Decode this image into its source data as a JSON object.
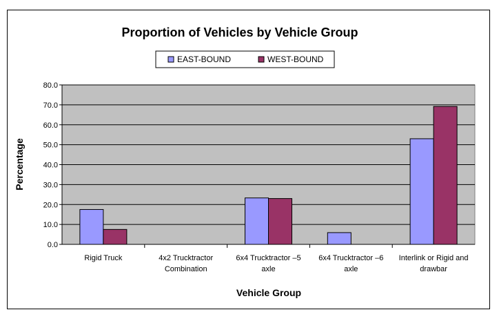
{
  "chart_data": {
    "type": "bar",
    "title": "Proportion of Vehicles by Vehicle Group",
    "xlabel": "Vehicle Group",
    "ylabel": "Percentage",
    "ylim": [
      0,
      80
    ],
    "yticks": [
      "0.0",
      "10.0",
      "20.0",
      "30.0",
      "40.0",
      "50.0",
      "60.0",
      "70.0",
      "80.0"
    ],
    "categories": [
      [
        "Rigid Truck"
      ],
      [
        "4x2 Trucktractor",
        "Combination"
      ],
      [
        "6x4 Trucktractor –5",
        "axle"
      ],
      [
        "6x4 Trucktractor –6",
        "axle"
      ],
      [
        "Interlink or Rigid and",
        "drawbar"
      ]
    ],
    "series": [
      {
        "name": "EAST-BOUND",
        "color": "#9999ff",
        "values": [
          17.5,
          0,
          23.3,
          5.9,
          53.0
        ]
      },
      {
        "name": "WEST-BOUND",
        "color": "#993366",
        "values": [
          7.5,
          0,
          23.0,
          0,
          69.2
        ]
      }
    ],
    "plot_background": "#c0c0c0",
    "grid": true,
    "legend_position": "top"
  }
}
